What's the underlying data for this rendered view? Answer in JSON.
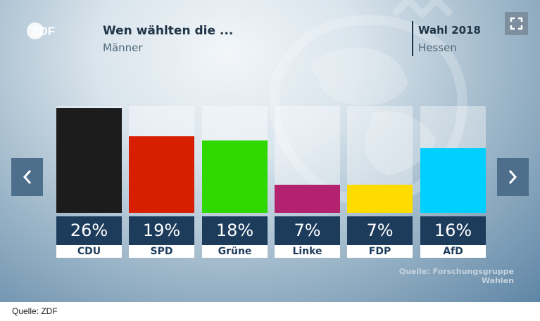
{
  "header": {
    "logo_text": "ZDF",
    "title": "Wen wählten die ...",
    "subtitle": "Männer",
    "election": "Wahl 2018",
    "state": "Hessen"
  },
  "controls": {
    "fullscreen_icon": "fullscreen-icon",
    "prev_icon": "chevron-left-icon",
    "next_icon": "chevron-right-icon"
  },
  "chart_data": {
    "type": "bar",
    "categories": [
      "CDU",
      "SPD",
      "Grüne",
      "Linke",
      "FDP",
      "AfD"
    ],
    "values": [
      26,
      19,
      18,
      7,
      7,
      16
    ],
    "value_labels": [
      "26%",
      "19%",
      "18%",
      "7%",
      "7%",
      "16%"
    ],
    "colors": [
      "#1c1c1c",
      "#d71f00",
      "#2ed800",
      "#b2226e",
      "#ffdc00",
      "#00d0ff"
    ],
    "ylim": [
      0,
      26.5
    ],
    "grid": false,
    "legend": "none"
  },
  "source_chart": "Quelle: Forschungsgruppe Wahlen",
  "footnote": "Quelle: ZDF"
}
